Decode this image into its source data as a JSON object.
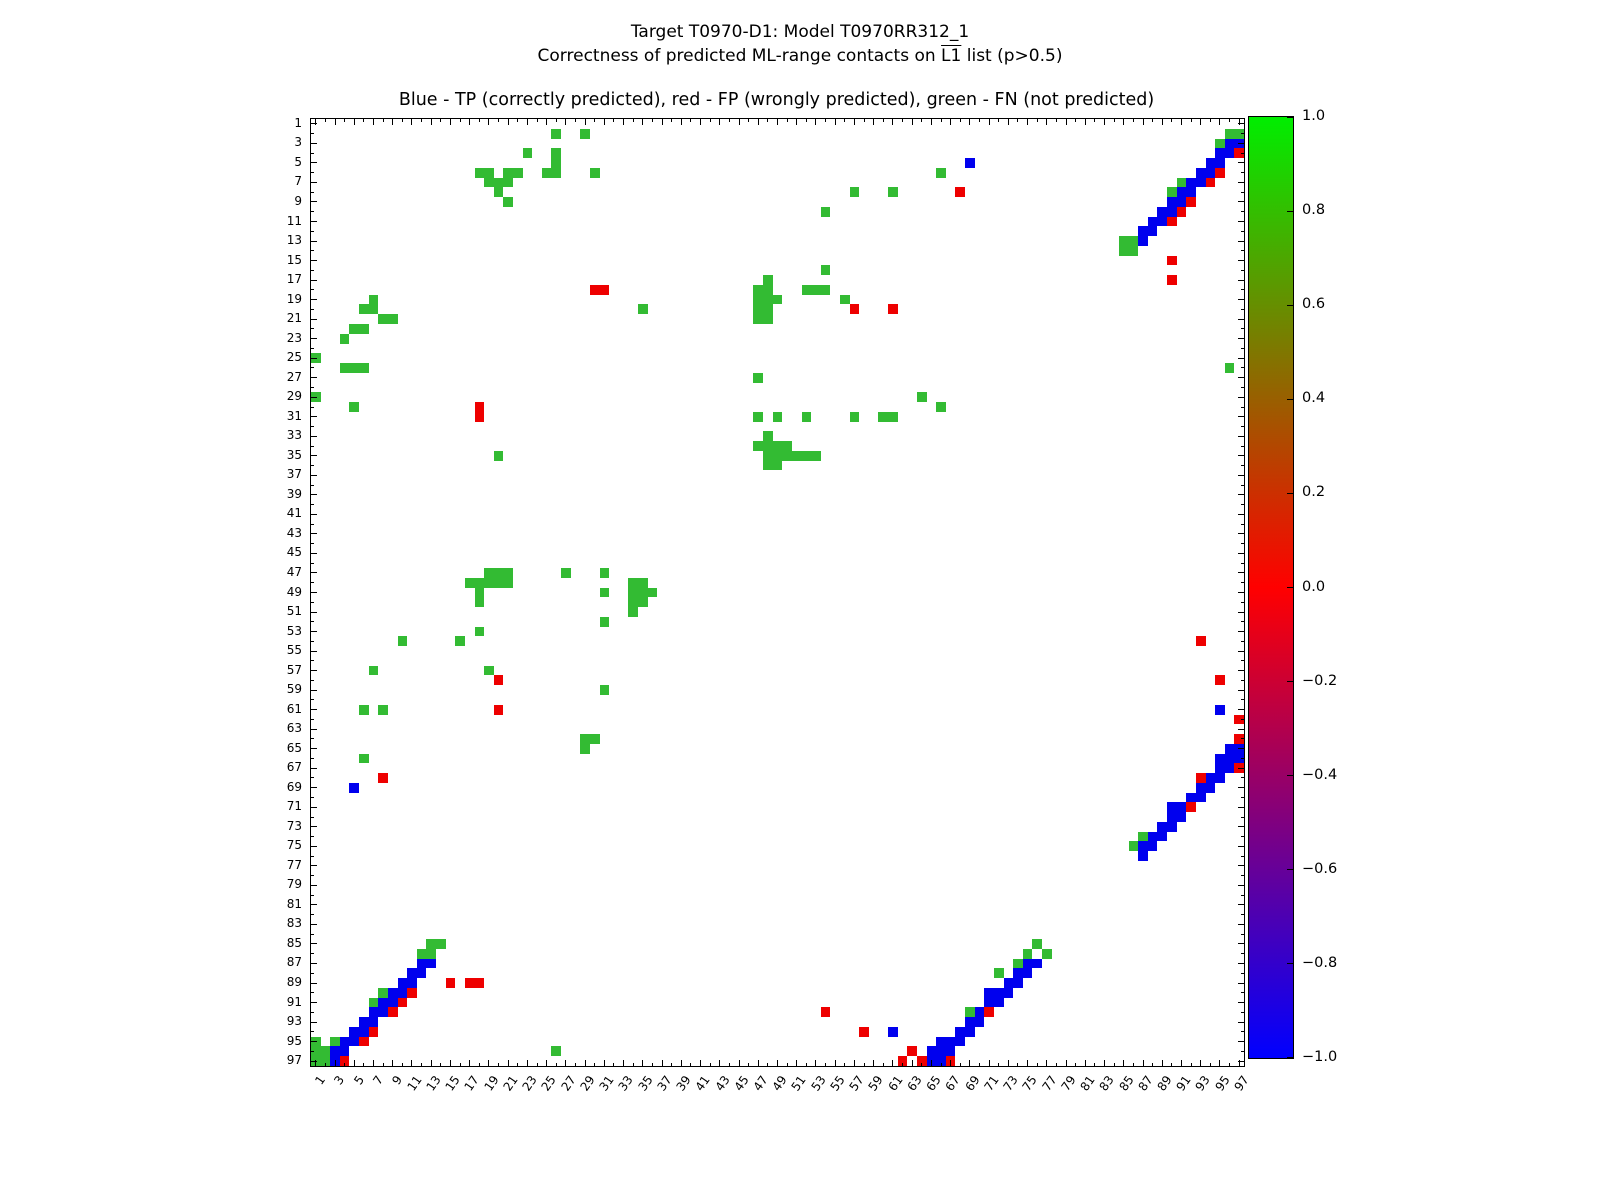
{
  "chart_data": {
    "type": "heatmap",
    "title": "Target T0970-D1: Model T0970RR312_1",
    "subtitle_pre": "Correctness of predicted ML-range contacts on ",
    "subtitle_l1": "L1",
    "subtitle_post": " list (p>0.5)",
    "axes_title": "Blue - TP (correctly predicted), red - FP (wrongly predicted), green - FN (not predicted)",
    "legend": {
      "TP": "Blue - TP (correctly predicted)",
      "FP": "red - FP (wrongly predicted)",
      "FN": "green - FN (not predicted)"
    },
    "colors": {
      "TP": "#0000ee",
      "FP": "#ee0000",
      "FN": "#33bb33"
    },
    "x_axis": {
      "range": [
        1,
        97
      ],
      "tick_labels": [
        1,
        3,
        5,
        7,
        9,
        11,
        13,
        15,
        17,
        19,
        21,
        23,
        25,
        27,
        29,
        31,
        33,
        35,
        37,
        39,
        41,
        43,
        45,
        47,
        49,
        51,
        53,
        55,
        57,
        59,
        61,
        63,
        65,
        67,
        69,
        71,
        73,
        75,
        77,
        79,
        81,
        83,
        85,
        87,
        89,
        91,
        93,
        95,
        97
      ]
    },
    "y_axis": {
      "range": [
        1,
        97
      ],
      "direction": "top-to-bottom",
      "tick_labels": [
        1,
        3,
        5,
        7,
        9,
        11,
        13,
        15,
        17,
        19,
        21,
        23,
        25,
        27,
        29,
        31,
        33,
        35,
        37,
        39,
        41,
        43,
        45,
        47,
        49,
        51,
        53,
        55,
        57,
        59,
        61,
        63,
        65,
        67,
        69,
        71,
        73,
        75,
        77,
        79,
        81,
        83,
        85,
        87,
        89,
        91,
        93,
        95,
        97
      ]
    },
    "colorbar": {
      "min": -1.0,
      "max": 1.0,
      "tick_labels": [
        "1.0",
        "0.8",
        "0.6",
        "0.4",
        "0.2",
        "0.0",
        "−0.2",
        "−0.4",
        "−0.6",
        "−0.8",
        "−1.0"
      ],
      "top_color": "#00ee00",
      "mid_color": "#ff0000",
      "bottom_color": "#0000ff"
    },
    "cells": [
      [
        26,
        2,
        "FN"
      ],
      [
        29,
        2,
        "FN"
      ],
      [
        96,
        2,
        "FN"
      ],
      [
        97,
        2,
        "FN"
      ],
      [
        95,
        3,
        "FN"
      ],
      [
        96,
        3,
        "TP"
      ],
      [
        97,
        3,
        "TP"
      ],
      [
        23,
        4,
        "FN"
      ],
      [
        26,
        4,
        "FN"
      ],
      [
        95,
        4,
        "TP"
      ],
      [
        96,
        4,
        "TP"
      ],
      [
        97,
        4,
        "FP"
      ],
      [
        26,
        5,
        "FN"
      ],
      [
        69,
        5,
        "TP"
      ],
      [
        94,
        5,
        "TP"
      ],
      [
        95,
        5,
        "TP"
      ],
      [
        18,
        6,
        "FN"
      ],
      [
        19,
        6,
        "FN"
      ],
      [
        21,
        6,
        "FN"
      ],
      [
        22,
        6,
        "FN"
      ],
      [
        25,
        6,
        "FN"
      ],
      [
        26,
        6,
        "FN"
      ],
      [
        30,
        6,
        "FN"
      ],
      [
        66,
        6,
        "FN"
      ],
      [
        93,
        6,
        "TP"
      ],
      [
        94,
        6,
        "TP"
      ],
      [
        95,
        6,
        "FP"
      ],
      [
        19,
        7,
        "FN"
      ],
      [
        20,
        7,
        "FN"
      ],
      [
        21,
        7,
        "FN"
      ],
      [
        91,
        7,
        "FN"
      ],
      [
        92,
        7,
        "TP"
      ],
      [
        93,
        7,
        "TP"
      ],
      [
        94,
        7,
        "FP"
      ],
      [
        20,
        8,
        "FN"
      ],
      [
        57,
        8,
        "FN"
      ],
      [
        61,
        8,
        "FN"
      ],
      [
        68,
        8,
        "FP"
      ],
      [
        90,
        8,
        "FN"
      ],
      [
        91,
        8,
        "TP"
      ],
      [
        92,
        8,
        "TP"
      ],
      [
        21,
        9,
        "FN"
      ],
      [
        90,
        9,
        "TP"
      ],
      [
        91,
        9,
        "TP"
      ],
      [
        92,
        9,
        "FP"
      ],
      [
        54,
        10,
        "FN"
      ],
      [
        89,
        10,
        "TP"
      ],
      [
        90,
        10,
        "TP"
      ],
      [
        91,
        10,
        "FP"
      ],
      [
        88,
        11,
        "TP"
      ],
      [
        89,
        11,
        "TP"
      ],
      [
        90,
        11,
        "FP"
      ],
      [
        87,
        12,
        "TP"
      ],
      [
        88,
        12,
        "TP"
      ],
      [
        85,
        13,
        "FN"
      ],
      [
        86,
        13,
        "FN"
      ],
      [
        87,
        13,
        "TP"
      ],
      [
        85,
        14,
        "FN"
      ],
      [
        86,
        14,
        "FN"
      ],
      [
        90,
        15,
        "FP"
      ],
      [
        54,
        16,
        "FN"
      ],
      [
        48,
        17,
        "FN"
      ],
      [
        90,
        17,
        "FP"
      ],
      [
        30,
        18,
        "FP"
      ],
      [
        31,
        18,
        "FP"
      ],
      [
        47,
        18,
        "FN"
      ],
      [
        48,
        18,
        "FN"
      ],
      [
        52,
        18,
        "FN"
      ],
      [
        53,
        18,
        "FN"
      ],
      [
        54,
        18,
        "FN"
      ],
      [
        7,
        19,
        "FN"
      ],
      [
        47,
        19,
        "FN"
      ],
      [
        48,
        19,
        "FN"
      ],
      [
        49,
        19,
        "FN"
      ],
      [
        56,
        19,
        "FN"
      ],
      [
        6,
        20,
        "FN"
      ],
      [
        7,
        20,
        "FN"
      ],
      [
        35,
        20,
        "FN"
      ],
      [
        47,
        20,
        "FN"
      ],
      [
        48,
        20,
        "FN"
      ],
      [
        57,
        20,
        "FP"
      ],
      [
        61,
        20,
        "FP"
      ],
      [
        8,
        21,
        "FN"
      ],
      [
        9,
        21,
        "FN"
      ],
      [
        47,
        21,
        "FN"
      ],
      [
        48,
        21,
        "FN"
      ],
      [
        5,
        22,
        "FN"
      ],
      [
        6,
        22,
        "FN"
      ],
      [
        4,
        23,
        "FN"
      ],
      [
        1,
        25,
        "FN"
      ],
      [
        4,
        26,
        "FN"
      ],
      [
        5,
        26,
        "FN"
      ],
      [
        6,
        26,
        "FN"
      ],
      [
        96,
        26,
        "FN"
      ],
      [
        47,
        27,
        "FN"
      ],
      [
        1,
        29,
        "FN"
      ],
      [
        64,
        29,
        "FN"
      ],
      [
        5,
        30,
        "FN"
      ],
      [
        18,
        30,
        "FP"
      ],
      [
        66,
        30,
        "FN"
      ],
      [
        18,
        31,
        "FP"
      ],
      [
        47,
        31,
        "FN"
      ],
      [
        49,
        31,
        "FN"
      ],
      [
        52,
        31,
        "FN"
      ],
      [
        57,
        31,
        "FN"
      ],
      [
        60,
        31,
        "FN"
      ],
      [
        61,
        31,
        "FN"
      ],
      [
        48,
        33,
        "FN"
      ],
      [
        47,
        34,
        "FN"
      ],
      [
        48,
        34,
        "FN"
      ],
      [
        49,
        34,
        "FN"
      ],
      [
        50,
        34,
        "FN"
      ],
      [
        20,
        35,
        "FN"
      ],
      [
        48,
        35,
        "FN"
      ],
      [
        49,
        35,
        "FN"
      ],
      [
        50,
        35,
        "FN"
      ],
      [
        51,
        35,
        "FN"
      ],
      [
        52,
        35,
        "FN"
      ],
      [
        53,
        35,
        "FN"
      ],
      [
        48,
        36,
        "FN"
      ],
      [
        49,
        36,
        "FN"
      ],
      [
        19,
        47,
        "FN"
      ],
      [
        20,
        47,
        "FN"
      ],
      [
        21,
        47,
        "FN"
      ],
      [
        27,
        47,
        "FN"
      ],
      [
        31,
        47,
        "FN"
      ],
      [
        17,
        48,
        "FN"
      ],
      [
        18,
        48,
        "FN"
      ],
      [
        19,
        48,
        "FN"
      ],
      [
        20,
        48,
        "FN"
      ],
      [
        21,
        48,
        "FN"
      ],
      [
        34,
        48,
        "FN"
      ],
      [
        35,
        48,
        "FN"
      ],
      [
        18,
        49,
        "FN"
      ],
      [
        31,
        49,
        "FN"
      ],
      [
        34,
        49,
        "FN"
      ],
      [
        35,
        49,
        "FN"
      ],
      [
        36,
        49,
        "FN"
      ],
      [
        18,
        50,
        "FN"
      ],
      [
        34,
        50,
        "FN"
      ],
      [
        35,
        50,
        "FN"
      ],
      [
        34,
        51,
        "FN"
      ],
      [
        31,
        52,
        "FN"
      ],
      [
        18,
        53,
        "FN"
      ],
      [
        10,
        54,
        "FN"
      ],
      [
        16,
        54,
        "FN"
      ],
      [
        93,
        54,
        "FP"
      ],
      [
        7,
        57,
        "FN"
      ],
      [
        19,
        57,
        "FN"
      ],
      [
        20,
        58,
        "FP"
      ],
      [
        95,
        58,
        "FP"
      ],
      [
        31,
        59,
        "FN"
      ],
      [
        6,
        61,
        "FN"
      ],
      [
        8,
        61,
        "FN"
      ],
      [
        20,
        61,
        "FP"
      ],
      [
        95,
        61,
        "TP"
      ],
      [
        97,
        62,
        "FP"
      ],
      [
        29,
        64,
        "FN"
      ],
      [
        30,
        64,
        "FN"
      ],
      [
        97,
        64,
        "FP"
      ],
      [
        29,
        65,
        "FN"
      ],
      [
        96,
        65,
        "TP"
      ],
      [
        97,
        65,
        "TP"
      ],
      [
        6,
        66,
        "FN"
      ],
      [
        95,
        66,
        "TP"
      ],
      [
        96,
        66,
        "TP"
      ],
      [
        97,
        66,
        "TP"
      ],
      [
        95,
        67,
        "TP"
      ],
      [
        96,
        67,
        "TP"
      ],
      [
        97,
        67,
        "FP"
      ],
      [
        8,
        68,
        "FP"
      ],
      [
        93,
        68,
        "FP"
      ],
      [
        94,
        68,
        "TP"
      ],
      [
        95,
        68,
        "TP"
      ],
      [
        5,
        69,
        "TP"
      ],
      [
        93,
        69,
        "TP"
      ],
      [
        94,
        69,
        "TP"
      ],
      [
        92,
        70,
        "TP"
      ],
      [
        93,
        70,
        "TP"
      ],
      [
        90,
        71,
        "TP"
      ],
      [
        91,
        71,
        "TP"
      ],
      [
        92,
        71,
        "FP"
      ],
      [
        90,
        72,
        "TP"
      ],
      [
        91,
        72,
        "TP"
      ],
      [
        89,
        73,
        "TP"
      ],
      [
        90,
        73,
        "TP"
      ],
      [
        87,
        74,
        "FN"
      ],
      [
        88,
        74,
        "TP"
      ],
      [
        89,
        74,
        "TP"
      ],
      [
        86,
        75,
        "FN"
      ],
      [
        87,
        75,
        "TP"
      ],
      [
        88,
        75,
        "TP"
      ],
      [
        87,
        76,
        "TP"
      ],
      [
        13,
        85,
        "FN"
      ],
      [
        14,
        85,
        "FN"
      ],
      [
        76,
        85,
        "FN"
      ],
      [
        12,
        86,
        "FN"
      ],
      [
        13,
        86,
        "FN"
      ],
      [
        75,
        86,
        "FN"
      ],
      [
        77,
        86,
        "FN"
      ],
      [
        12,
        87,
        "TP"
      ],
      [
        13,
        87,
        "TP"
      ],
      [
        74,
        87,
        "FN"
      ],
      [
        75,
        87,
        "TP"
      ],
      [
        76,
        87,
        "TP"
      ],
      [
        11,
        88,
        "TP"
      ],
      [
        12,
        88,
        "TP"
      ],
      [
        72,
        88,
        "FN"
      ],
      [
        74,
        88,
        "TP"
      ],
      [
        75,
        88,
        "TP"
      ],
      [
        10,
        89,
        "TP"
      ],
      [
        11,
        89,
        "TP"
      ],
      [
        15,
        89,
        "FP"
      ],
      [
        17,
        89,
        "FP"
      ],
      [
        18,
        89,
        "FP"
      ],
      [
        73,
        89,
        "TP"
      ],
      [
        74,
        89,
        "TP"
      ],
      [
        8,
        90,
        "FN"
      ],
      [
        9,
        90,
        "TP"
      ],
      [
        10,
        90,
        "TP"
      ],
      [
        11,
        90,
        "FP"
      ],
      [
        71,
        90,
        "TP"
      ],
      [
        72,
        90,
        "TP"
      ],
      [
        73,
        90,
        "TP"
      ],
      [
        7,
        91,
        "FN"
      ],
      [
        8,
        91,
        "TP"
      ],
      [
        9,
        91,
        "TP"
      ],
      [
        10,
        91,
        "FP"
      ],
      [
        71,
        91,
        "TP"
      ],
      [
        72,
        91,
        "TP"
      ],
      [
        7,
        92,
        "TP"
      ],
      [
        8,
        92,
        "TP"
      ],
      [
        9,
        92,
        "FP"
      ],
      [
        54,
        92,
        "FP"
      ],
      [
        69,
        92,
        "FN"
      ],
      [
        70,
        92,
        "TP"
      ],
      [
        71,
        92,
        "FP"
      ],
      [
        6,
        93,
        "TP"
      ],
      [
        7,
        93,
        "TP"
      ],
      [
        69,
        93,
        "TP"
      ],
      [
        70,
        93,
        "TP"
      ],
      [
        5,
        94,
        "TP"
      ],
      [
        6,
        94,
        "TP"
      ],
      [
        7,
        94,
        "FP"
      ],
      [
        58,
        94,
        "FP"
      ],
      [
        61,
        94,
        "TP"
      ],
      [
        68,
        94,
        "TP"
      ],
      [
        69,
        94,
        "TP"
      ],
      [
        1,
        95,
        "FN"
      ],
      [
        3,
        95,
        "FN"
      ],
      [
        4,
        95,
        "TP"
      ],
      [
        5,
        95,
        "TP"
      ],
      [
        6,
        95,
        "FP"
      ],
      [
        66,
        95,
        "TP"
      ],
      [
        67,
        95,
        "TP"
      ],
      [
        68,
        95,
        "TP"
      ],
      [
        1,
        96,
        "FN"
      ],
      [
        2,
        96,
        "FN"
      ],
      [
        3,
        96,
        "TP"
      ],
      [
        4,
        96,
        "TP"
      ],
      [
        26,
        96,
        "FN"
      ],
      [
        63,
        96,
        "FP"
      ],
      [
        65,
        96,
        "TP"
      ],
      [
        66,
        96,
        "TP"
      ],
      [
        67,
        96,
        "TP"
      ],
      [
        1,
        97,
        "FN"
      ],
      [
        2,
        97,
        "FN"
      ],
      [
        3,
        97,
        "TP"
      ],
      [
        4,
        97,
        "FP"
      ],
      [
        62,
        97,
        "FP"
      ],
      [
        64,
        97,
        "FP"
      ],
      [
        65,
        97,
        "TP"
      ],
      [
        66,
        97,
        "TP"
      ],
      [
        67,
        97,
        "FP"
      ]
    ]
  }
}
